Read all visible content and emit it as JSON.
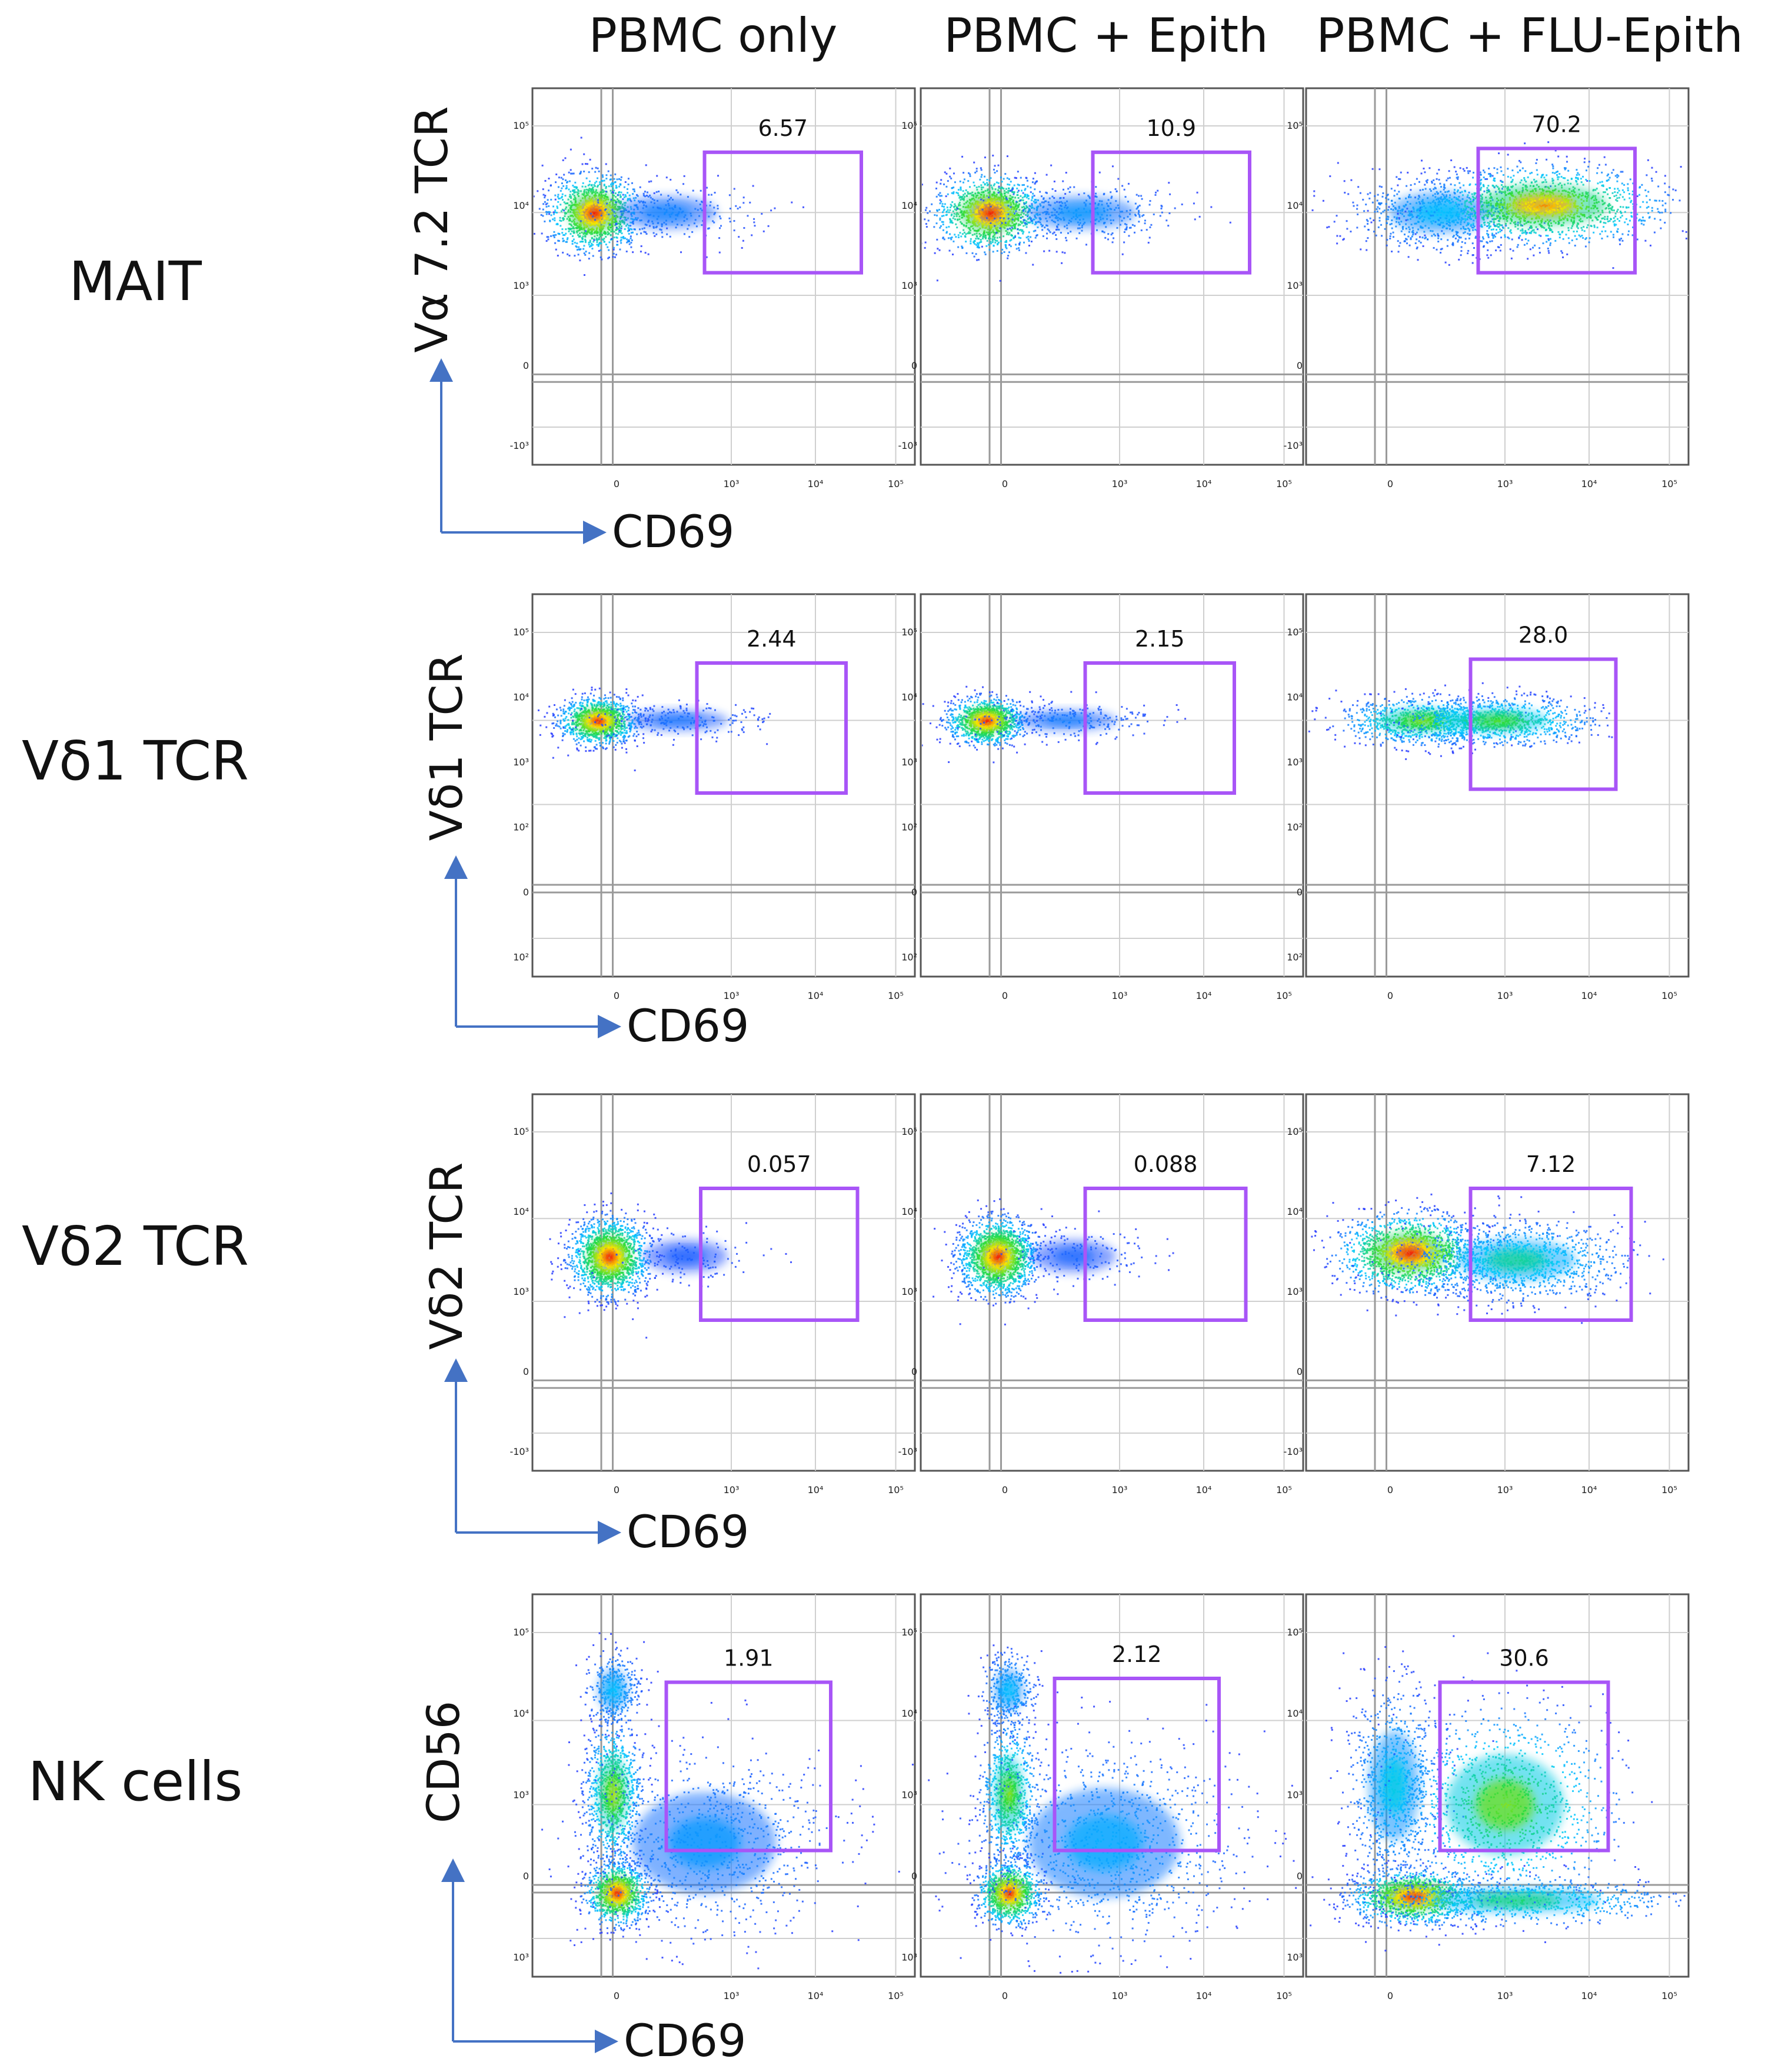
{
  "figure": {
    "accent_color": "#a855f7",
    "arrow_color": "#4472c4"
  },
  "columns": [
    "PBMC only",
    "PBMC + Epith",
    "PBMC + FLU-Epith"
  ],
  "x_axis_label": "CD69",
  "x_ticks": [
    "0",
    "10³",
    "10⁴",
    "10⁵"
  ],
  "chart_data": [
    {
      "type": "scatter",
      "row_title": "MAIT",
      "xlabel": "CD69",
      "ylabel": "Vα 7.2 TCR",
      "y_ticks": [
        "10⁵",
        "10⁴",
        "10³",
        "0",
        "-10³"
      ],
      "gate_percent": [
        "6.57",
        "10.9",
        "70.2"
      ]
    },
    {
      "type": "scatter",
      "row_title": "Vδ1 TCR",
      "xlabel": "CD69",
      "ylabel": "Vδ1 TCR",
      "y_ticks": [
        "10⁵",
        "10⁴",
        "10³",
        "10²",
        "0",
        "10²"
      ],
      "gate_percent": [
        "2.44",
        "2.15",
        "28.0"
      ]
    },
    {
      "type": "scatter",
      "row_title": "Vδ2 TCR",
      "xlabel": "CD69",
      "ylabel": "Vδ2 TCR",
      "y_ticks": [
        "10⁵",
        "10⁴",
        "10³",
        "0",
        "-10³"
      ],
      "gate_percent": [
        "0.057",
        "0.088",
        "7.12"
      ]
    },
    {
      "type": "scatter",
      "row_title": "NK cells",
      "xlabel": "CD69",
      "ylabel": "CD56",
      "y_ticks": [
        "10⁵",
        "10⁴",
        "10³",
        "0",
        "10³"
      ],
      "gate_percent": [
        "1.91",
        "2.12",
        "30.6"
      ]
    }
  ]
}
